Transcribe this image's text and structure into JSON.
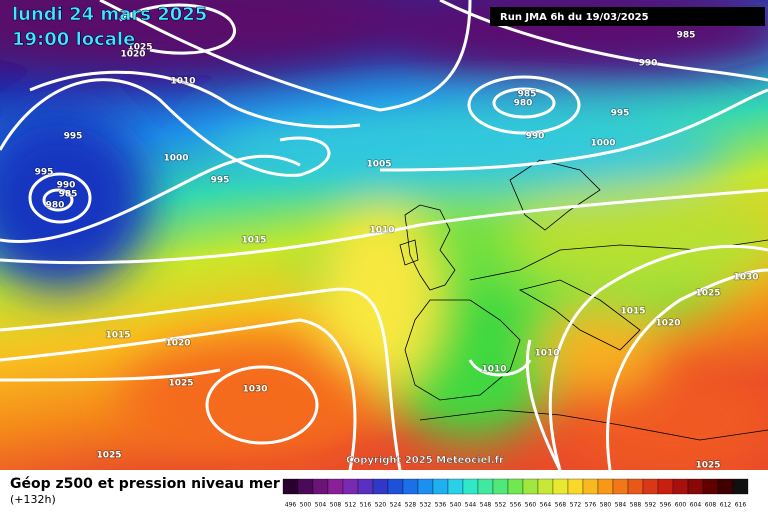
{
  "header": {
    "date": "lundi 24 mars 2025",
    "time": "19:00 locale",
    "run": "Run JMA 6h du 19/03/2025"
  },
  "isobar_labels": [
    "1025",
    "1020",
    "1010",
    "995",
    "995",
    "990",
    "985",
    "980",
    "1000",
    "995",
    "1005",
    "1015",
    "1010",
    "985",
    "980",
    "990",
    "995",
    "1000",
    "990",
    "985",
    "1030",
    "1025",
    "1015",
    "1020",
    "1010",
    "1010",
    "1015",
    "1020",
    "1025",
    "1030",
    "1025",
    "1025"
  ],
  "copyright": "Copyright 2025 Meteociel.fr",
  "footer": {
    "title": "Géop z500 et pression niveau mer",
    "subtitle": "(+132h)"
  },
  "scale": [
    "496",
    "500",
    "504",
    "508",
    "512",
    "516",
    "520",
    "524",
    "528",
    "532",
    "536",
    "540",
    "544",
    "548",
    "552",
    "556",
    "560",
    "564",
    "568",
    "572",
    "576",
    "580",
    "584",
    "588",
    "592",
    "596",
    "600",
    "604",
    "608",
    "612",
    "616"
  ]
}
